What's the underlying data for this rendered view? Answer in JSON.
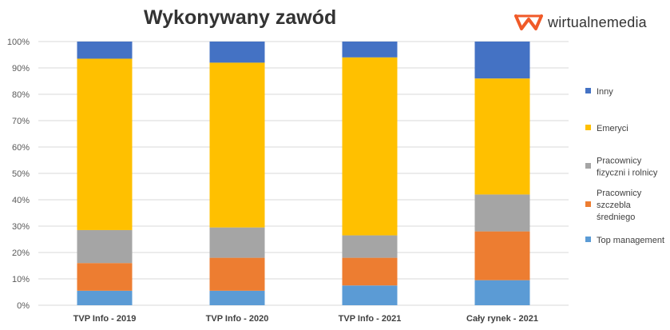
{
  "chart_data": {
    "type": "bar",
    "stacked": true,
    "title": "Wykonywany zawód",
    "categories": [
      "TVP Info - 2019",
      "TVP Info - 2020",
      "TVP Info - 2021",
      "Cały rynek - 2021"
    ],
    "y_ticks": [
      "0%",
      "10%",
      "20%",
      "30%",
      "40%",
      "50%",
      "60%",
      "70%",
      "80%",
      "90%",
      "100%"
    ],
    "ylim": [
      0,
      100
    ],
    "grid": true,
    "legend_position": "right",
    "series": [
      {
        "name": "Top management",
        "color": "#5B9BD5",
        "values": [
          5.5,
          5.5,
          7.5,
          9.5
        ]
      },
      {
        "name": "Pracownicy szczebla średniego",
        "name_lines": [
          "Pracownicy",
          "szczebla",
          "średniego"
        ],
        "color": "#ED7D31",
        "values": [
          10.5,
          12.5,
          10.5,
          18.5
        ]
      },
      {
        "name": "Pracownicy fizyczni i rolnicy",
        "name_lines": [
          "Pracownicy",
          "fizyczni i rolnicy"
        ],
        "color": "#A5A5A5",
        "values": [
          12.5,
          11.5,
          8.5,
          14.0
        ]
      },
      {
        "name": "Emeryci",
        "color": "#FFC000",
        "values": [
          65.0,
          62.5,
          67.5,
          44.0
        ]
      },
      {
        "name": "Inny",
        "color": "#4472C4",
        "values": [
          6.5,
          8.0,
          6.0,
          14.0
        ]
      }
    ]
  },
  "logo": {
    "text": "wirtualnemedia",
    "icon": "wm-logo-icon",
    "color": "#F05A28"
  }
}
